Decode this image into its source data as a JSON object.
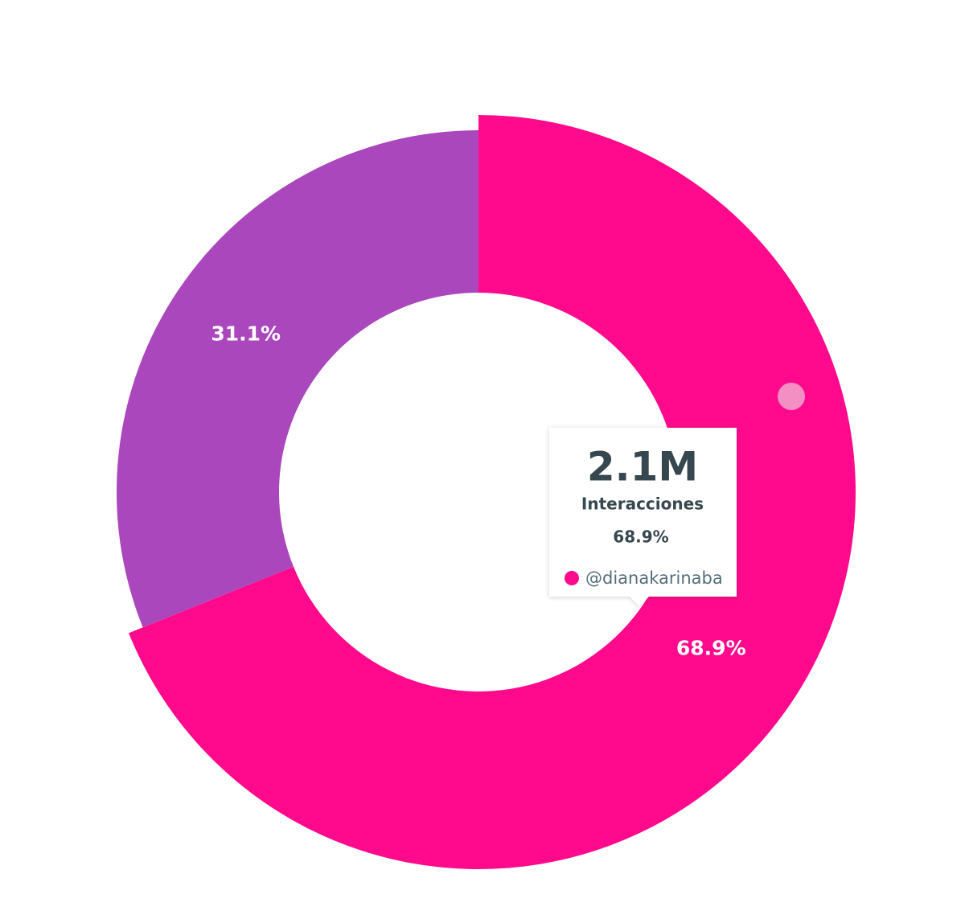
{
  "chart_data": {
    "type": "donut",
    "categories": [
      "@dianakarinaba",
      null
    ],
    "values": [
      68.9,
      31.1
    ],
    "value_labels": [
      "68.9%",
      "31.1%"
    ],
    "colors": [
      "#FF0A8C",
      "#AB47BC"
    ],
    "tooltip": {
      "value": "2.1M",
      "metric": "Interacciones",
      "percent": "68.9%",
      "series": "@dianakarinaba"
    }
  }
}
